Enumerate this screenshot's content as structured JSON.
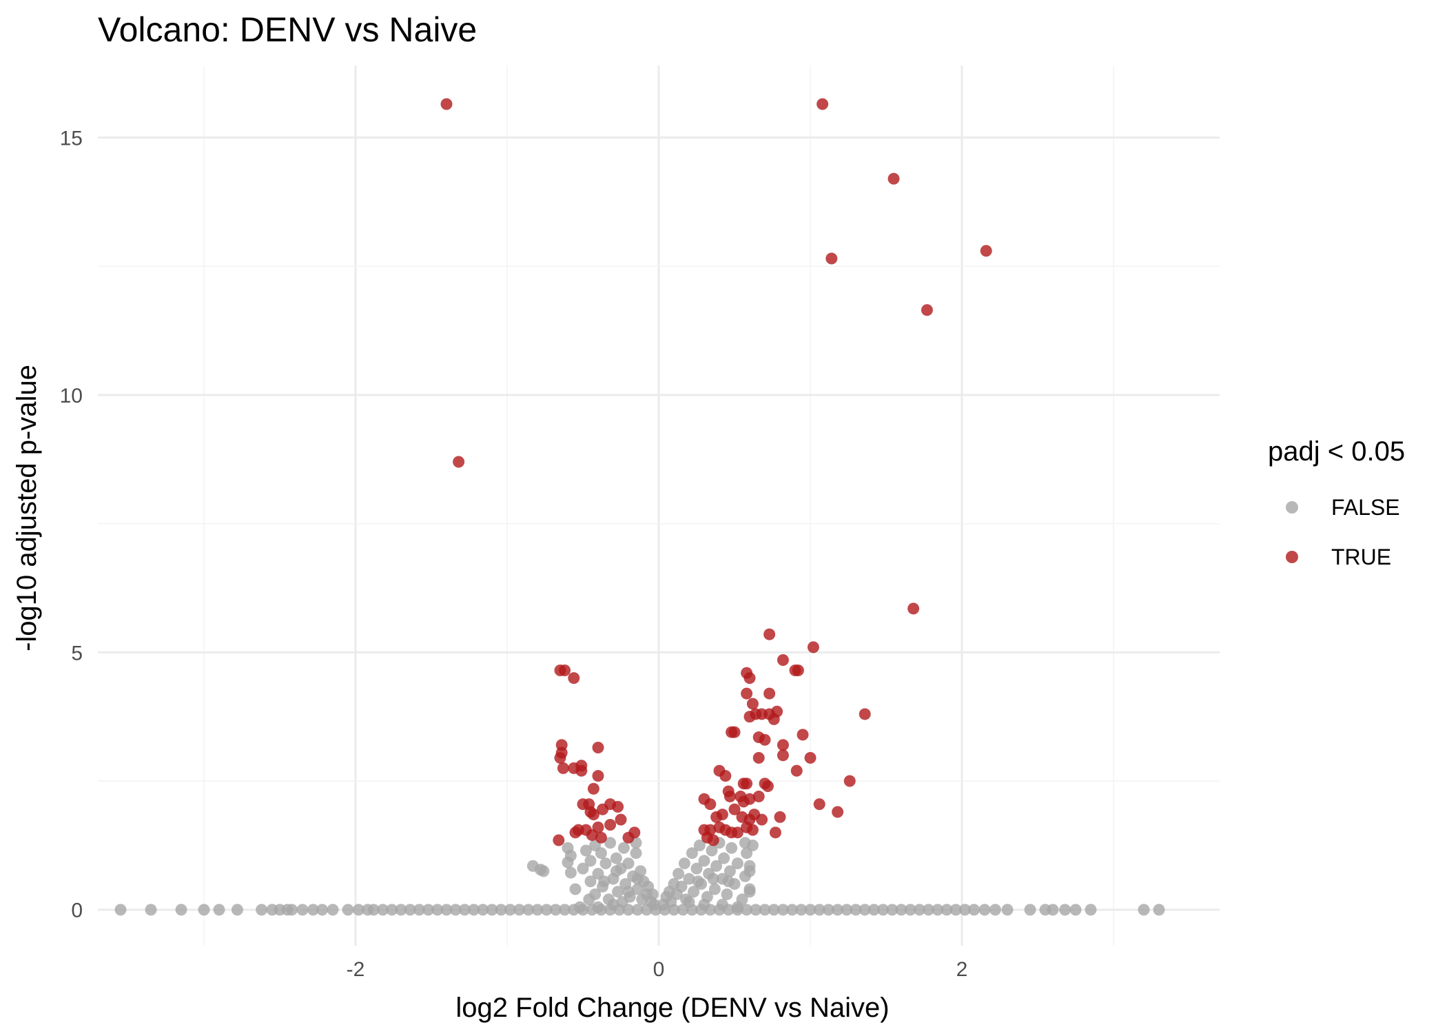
{
  "chart_data": {
    "type": "scatter",
    "title": "Volcano: DENV vs Naive",
    "xlabel": "log2 Fold Change (DENV vs Naive)",
    "ylabel": "-log10 adjusted p-value",
    "xlim": [
      -3.7,
      3.7
    ],
    "ylim": [
      -0.7,
      16.4
    ],
    "x_ticks": [
      -2,
      0,
      2
    ],
    "x_tick_labels": [
      "-2",
      "0",
      "2"
    ],
    "y_ticks": [
      0,
      5,
      10,
      15
    ],
    "y_tick_labels": [
      "0",
      "5",
      "10",
      "15"
    ],
    "grid": true,
    "legend": {
      "title": "padj < 0.05",
      "position": "right",
      "entries": [
        {
          "label": "FALSE",
          "color": "#a6a6a6"
        },
        {
          "label": "TRUE",
          "color": "#b2191c"
        }
      ]
    },
    "colors": {
      "FALSE": "#a6a6a6",
      "TRUE": "#b2191c"
    },
    "series": [
      {
        "name": "FALSE",
        "points": [
          [
            -3.55,
            0
          ],
          [
            -3.35,
            0
          ],
          [
            -3.15,
            0
          ],
          [
            -3.0,
            0
          ],
          [
            -2.9,
            0
          ],
          [
            -2.78,
            0
          ],
          [
            -2.62,
            0
          ],
          [
            -2.55,
            0
          ],
          [
            -2.5,
            0
          ],
          [
            -2.45,
            0
          ],
          [
            -2.42,
            0
          ],
          [
            -2.35,
            0
          ],
          [
            -2.28,
            0
          ],
          [
            -2.22,
            0
          ],
          [
            -2.15,
            0
          ],
          [
            -2.05,
            0
          ],
          [
            -1.98,
            0
          ],
          [
            -1.92,
            0
          ],
          [
            -1.88,
            0
          ],
          [
            -1.82,
            0
          ],
          [
            -1.76,
            0
          ],
          [
            -1.7,
            0
          ],
          [
            -1.64,
            0
          ],
          [
            -1.58,
            0
          ],
          [
            -1.52,
            0
          ],
          [
            -1.46,
            0
          ],
          [
            -1.4,
            0
          ],
          [
            -1.34,
            0
          ],
          [
            -1.28,
            0
          ],
          [
            -1.22,
            0
          ],
          [
            -1.16,
            0
          ],
          [
            -1.1,
            0
          ],
          [
            -1.04,
            0
          ],
          [
            -0.98,
            0
          ],
          [
            -0.92,
            0
          ],
          [
            -0.86,
            0
          ],
          [
            -0.8,
            0
          ],
          [
            -0.74,
            0
          ],
          [
            -0.68,
            0
          ],
          [
            -0.62,
            0
          ],
          [
            -0.56,
            0
          ],
          [
            -0.5,
            0
          ],
          [
            -0.44,
            0
          ],
          [
            -0.38,
            0
          ],
          [
            -0.32,
            0
          ],
          [
            -0.26,
            0
          ],
          [
            -0.2,
            0
          ],
          [
            -0.14,
            0
          ],
          [
            -0.08,
            0
          ],
          [
            -0.02,
            0
          ],
          [
            0.04,
            0
          ],
          [
            0.1,
            0
          ],
          [
            0.16,
            0
          ],
          [
            0.22,
            0
          ],
          [
            0.28,
            0
          ],
          [
            0.34,
            0
          ],
          [
            0.4,
            0
          ],
          [
            0.46,
            0
          ],
          [
            0.52,
            0
          ],
          [
            0.58,
            0
          ],
          [
            0.64,
            0
          ],
          [
            0.7,
            0
          ],
          [
            0.76,
            0
          ],
          [
            0.82,
            0
          ],
          [
            0.88,
            0
          ],
          [
            0.94,
            0
          ],
          [
            1.0,
            0
          ],
          [
            1.06,
            0
          ],
          [
            1.12,
            0
          ],
          [
            1.18,
            0
          ],
          [
            1.24,
            0
          ],
          [
            1.3,
            0
          ],
          [
            1.36,
            0
          ],
          [
            1.42,
            0
          ],
          [
            1.48,
            0
          ],
          [
            1.54,
            0
          ],
          [
            1.6,
            0
          ],
          [
            1.66,
            0
          ],
          [
            1.72,
            0
          ],
          [
            1.78,
            0
          ],
          [
            1.84,
            0
          ],
          [
            1.9,
            0
          ],
          [
            1.96,
            0
          ],
          [
            2.02,
            0
          ],
          [
            2.08,
            0
          ],
          [
            2.15,
            0
          ],
          [
            2.22,
            0
          ],
          [
            2.3,
            0
          ],
          [
            2.45,
            0
          ],
          [
            2.55,
            0
          ],
          [
            2.6,
            0
          ],
          [
            2.68,
            0
          ],
          [
            2.75,
            0
          ],
          [
            2.85,
            0
          ],
          [
            3.2,
            0
          ],
          [
            3.3,
            0
          ],
          [
            -0.83,
            0.85
          ],
          [
            -0.78,
            0.78
          ],
          [
            -0.76,
            0.75
          ],
          [
            -0.6,
            1.2
          ],
          [
            -0.58,
            1.05
          ],
          [
            -0.6,
            0.92
          ],
          [
            -0.58,
            0.72
          ],
          [
            -0.55,
            0.4
          ],
          [
            -0.5,
            0.8
          ],
          [
            -0.48,
            1.15
          ],
          [
            -0.45,
            0.95
          ],
          [
            -0.45,
            0.55
          ],
          [
            -0.42,
            0.3
          ],
          [
            -0.42,
            1.25
          ],
          [
            -0.4,
            0.7
          ],
          [
            -0.38,
            1.1
          ],
          [
            -0.37,
            0.45
          ],
          [
            -0.35,
            0.9
          ],
          [
            -0.33,
            0.2
          ],
          [
            -0.32,
            1.3
          ],
          [
            -0.3,
            0.6
          ],
          [
            -0.28,
            1.0
          ],
          [
            -0.27,
            0.35
          ],
          [
            -0.25,
            0.8
          ],
          [
            -0.23,
            1.2
          ],
          [
            -0.22,
            0.5
          ],
          [
            -0.2,
            0.9
          ],
          [
            -0.19,
            0.25
          ],
          [
            -0.17,
            0.65
          ],
          [
            -0.15,
            1.1
          ],
          [
            -0.14,
            0.4
          ],
          [
            -0.12,
            0.75
          ],
          [
            -0.11,
            0.2
          ],
          [
            -0.1,
            0.55
          ],
          [
            -0.08,
            0.3
          ],
          [
            -0.07,
            0.45
          ],
          [
            -0.05,
            0.15
          ],
          [
            -0.04,
            0.3
          ],
          [
            -0.03,
            0.1
          ],
          [
            -0.36,
            0.55
          ],
          [
            -0.28,
            0.75
          ],
          [
            -0.2,
            0.35
          ],
          [
            -0.14,
            0.6
          ],
          [
            -0.46,
            0.2
          ],
          [
            -0.52,
            0.05
          ],
          [
            -0.4,
            0.05
          ],
          [
            -0.3,
            0.1
          ],
          [
            -0.24,
            0.15
          ],
          [
            -0.15,
            1.3
          ],
          [
            0.03,
            0.1
          ],
          [
            0.05,
            0.25
          ],
          [
            0.07,
            0.35
          ],
          [
            0.08,
            0.15
          ],
          [
            0.1,
            0.5
          ],
          [
            0.12,
            0.3
          ],
          [
            0.13,
            0.7
          ],
          [
            0.15,
            0.45
          ],
          [
            0.17,
            0.9
          ],
          [
            0.18,
            0.2
          ],
          [
            0.2,
            0.6
          ],
          [
            0.22,
            1.1
          ],
          [
            0.23,
            0.35
          ],
          [
            0.25,
            0.8
          ],
          [
            0.27,
            1.25
          ],
          [
            0.28,
            0.5
          ],
          [
            0.3,
            0.95
          ],
          [
            0.32,
            0.25
          ],
          [
            0.33,
            0.7
          ],
          [
            0.35,
            1.15
          ],
          [
            0.37,
            0.4
          ],
          [
            0.38,
            0.85
          ],
          [
            0.4,
            1.3
          ],
          [
            0.42,
            0.6
          ],
          [
            0.43,
            1.0
          ],
          [
            0.45,
            0.3
          ],
          [
            0.47,
            0.75
          ],
          [
            0.48,
            1.2
          ],
          [
            0.5,
            0.5
          ],
          [
            0.52,
            0.9
          ],
          [
            0.55,
            0.2
          ],
          [
            0.57,
            0.65
          ],
          [
            0.58,
            1.1
          ],
          [
            0.6,
            0.4
          ],
          [
            0.62,
            1.25
          ],
          [
            0.6,
            0.35
          ],
          [
            0.6,
            0.75
          ],
          [
            0.6,
            0.85
          ],
          [
            0.57,
            1.3
          ],
          [
            0.26,
            0.55
          ],
          [
            0.36,
            0.6
          ],
          [
            0.46,
            0.55
          ],
          [
            0.2,
            0.15
          ],
          [
            0.3,
            0.1
          ],
          [
            0.42,
            0.1
          ],
          [
            0.52,
            0.05
          ]
        ]
      },
      {
        "name": "TRUE",
        "points": [
          [
            -1.4,
            15.65
          ],
          [
            1.08,
            15.65
          ],
          [
            1.55,
            14.2
          ],
          [
            2.16,
            12.8
          ],
          [
            1.14,
            12.65
          ],
          [
            1.77,
            11.65
          ],
          [
            -1.32,
            8.7
          ],
          [
            1.68,
            5.85
          ],
          [
            0.73,
            5.35
          ],
          [
            1.02,
            5.1
          ],
          [
            0.82,
            4.85
          ],
          [
            0.9,
            4.65
          ],
          [
            0.92,
            4.65
          ],
          [
            -0.65,
            4.65
          ],
          [
            -0.62,
            4.65
          ],
          [
            -0.56,
            4.5
          ],
          [
            0.58,
            4.6
          ],
          [
            0.6,
            4.5
          ],
          [
            0.73,
            4.2
          ],
          [
            0.58,
            4.2
          ],
          [
            0.62,
            4.0
          ],
          [
            0.68,
            3.8
          ],
          [
            0.64,
            3.8
          ],
          [
            0.73,
            3.8
          ],
          [
            0.6,
            3.75
          ],
          [
            0.78,
            3.85
          ],
          [
            0.76,
            3.7
          ],
          [
            1.36,
            3.8
          ],
          [
            0.48,
            3.45
          ],
          [
            0.5,
            3.45
          ],
          [
            0.66,
            3.35
          ],
          [
            0.7,
            3.3
          ],
          [
            0.95,
            3.4
          ],
          [
            0.82,
            3.2
          ],
          [
            -0.64,
            3.2
          ],
          [
            -0.64,
            3.05
          ],
          [
            -0.65,
            2.95
          ],
          [
            -0.4,
            3.15
          ],
          [
            -0.63,
            2.75
          ],
          [
            -0.56,
            2.75
          ],
          [
            -0.51,
            2.8
          ],
          [
            -0.51,
            2.7
          ],
          [
            -0.4,
            2.6
          ],
          [
            0.82,
            3.0
          ],
          [
            1.0,
            2.95
          ],
          [
            0.91,
            2.7
          ],
          [
            0.66,
            2.95
          ],
          [
            0.4,
            2.7
          ],
          [
            0.44,
            2.6
          ],
          [
            0.56,
            2.45
          ],
          [
            0.58,
            2.45
          ],
          [
            0.7,
            2.45
          ],
          [
            1.26,
            2.5
          ],
          [
            -0.43,
            2.35
          ],
          [
            0.46,
            2.3
          ],
          [
            0.47,
            2.2
          ],
          [
            0.54,
            2.2
          ],
          [
            0.56,
            2.1
          ],
          [
            0.6,
            2.15
          ],
          [
            0.66,
            2.2
          ],
          [
            0.72,
            2.4
          ],
          [
            0.3,
            2.15
          ],
          [
            0.34,
            2.05
          ],
          [
            1.06,
            2.05
          ],
          [
            1.18,
            1.9
          ],
          [
            -0.5,
            2.05
          ],
          [
            -0.46,
            2.05
          ],
          [
            -0.32,
            2.05
          ],
          [
            -0.27,
            2.0
          ],
          [
            -0.37,
            1.95
          ],
          [
            -0.45,
            1.9
          ],
          [
            -0.43,
            1.85
          ],
          [
            0.42,
            1.85
          ],
          [
            0.5,
            1.95
          ],
          [
            0.63,
            1.85
          ],
          [
            0.8,
            1.8
          ],
          [
            0.38,
            1.8
          ],
          [
            0.55,
            1.8
          ],
          [
            0.6,
            1.75
          ],
          [
            0.68,
            1.75
          ],
          [
            -0.25,
            1.75
          ],
          [
            -0.32,
            1.65
          ],
          [
            -0.4,
            1.6
          ],
          [
            -0.48,
            1.55
          ],
          [
            -0.53,
            1.55
          ],
          [
            -0.55,
            1.5
          ],
          [
            0.3,
            1.55
          ],
          [
            0.34,
            1.55
          ],
          [
            0.4,
            1.6
          ],
          [
            0.44,
            1.55
          ],
          [
            0.48,
            1.5
          ],
          [
            0.52,
            1.5
          ],
          [
            0.58,
            1.6
          ],
          [
            0.62,
            1.55
          ],
          [
            0.77,
            1.5
          ],
          [
            -0.16,
            1.5
          ],
          [
            -0.2,
            1.4
          ],
          [
            -0.44,
            1.45
          ],
          [
            -0.38,
            1.4
          ],
          [
            -0.66,
            1.35
          ],
          [
            0.32,
            1.4
          ],
          [
            0.36,
            1.35
          ]
        ]
      }
    ]
  }
}
